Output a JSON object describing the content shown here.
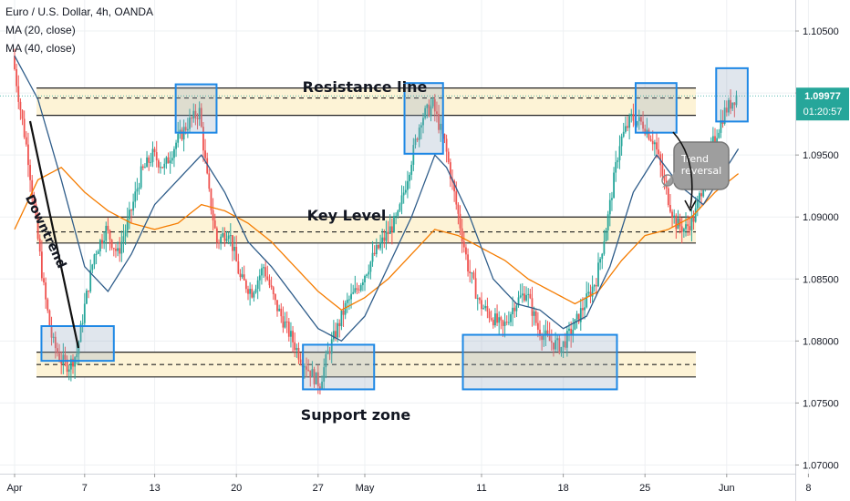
{
  "legend": {
    "symbol": "Euro / U.S. Dollar, 4h, OANDA",
    "ma20": "MA (20, close)",
    "ma40": "MA (40, close)"
  },
  "price_axis": {
    "ticks": [
      "1.10500",
      "1.10000",
      "1.09500",
      "1.09000",
      "1.08500",
      "1.08000",
      "1.07500",
      "1.07000"
    ],
    "last_price": "1.09977",
    "countdown": "01:20:57"
  },
  "annotations": {
    "resistance": "Resistance line",
    "key_level": "Key Level",
    "support": "Support zone",
    "downtrend": "Downtrend",
    "trend_reversal_line1": "Trend",
    "trend_reversal_line2": "reversal"
  },
  "colors": {
    "up": "#26a69a",
    "down": "#ef5350",
    "ma20": "#2f5d8a",
    "ma40": "#f57c00",
    "zone_fill": "#fdf3d6",
    "box": "#1e88e5",
    "price_badge": "#26a69a"
  },
  "chart_data": {
    "type": "candlestick",
    "title": "Euro / U.S. Dollar, 4h, OANDA",
    "x_ticks": [
      {
        "label": "Apr",
        "t": 0
      },
      {
        "label": "7",
        "t": 6
      },
      {
        "label": "13",
        "t": 12
      },
      {
        "label": "20",
        "t": 19
      },
      {
        "label": "27",
        "t": 26
      },
      {
        "label": "May",
        "t": 30
      },
      {
        "label": "11",
        "t": 40
      },
      {
        "label": "18",
        "t": 47
      },
      {
        "label": "25",
        "t": 54
      },
      {
        "label": "Jun",
        "t": 61
      },
      {
        "label": "8",
        "t": 68
      }
    ],
    "ylim": [
      1.0693,
      1.1075
    ],
    "zones": [
      {
        "name": "Resistance line",
        "top": 1.1004,
        "mid": 1.0996,
        "bottom": 1.0982
      },
      {
        "name": "Key Level",
        "top": 1.09,
        "mid": 1.0888,
        "bottom": 1.0879
      },
      {
        "name": "Support zone",
        "top": 1.0791,
        "mid": 1.0781,
        "bottom": 1.0771
      }
    ],
    "highlight_boxes": [
      {
        "t0": 2.3,
        "t1": 8.5,
        "p_top": 1.0812,
        "p_bottom": 1.0784
      },
      {
        "t0": 13.8,
        "t1": 17.3,
        "p_top": 1.1007,
        "p_bottom": 1.0968
      },
      {
        "t0": 24.7,
        "t1": 30.8,
        "p_top": 1.0797,
        "p_bottom": 1.0761
      },
      {
        "t0": 33.4,
        "t1": 36.7,
        "p_top": 1.1008,
        "p_bottom": 1.0951
      },
      {
        "t0": 38.4,
        "t1": 51.6,
        "p_top": 1.0805,
        "p_bottom": 1.0761
      },
      {
        "t0": 53.2,
        "t1": 56.7,
        "p_top": 1.1008,
        "p_bottom": 1.0968
      },
      {
        "t0": 60.1,
        "t1": 62.8,
        "p_top": 1.102,
        "p_bottom": 1.0977
      }
    ],
    "price_path": [
      [
        0,
        1.103
      ],
      [
        0.7,
        1.0985
      ],
      [
        1.3,
        1.095
      ],
      [
        2.0,
        1.0895
      ],
      [
        2.7,
        1.084
      ],
      [
        3.4,
        1.08
      ],
      [
        4.1,
        1.0785
      ],
      [
        4.8,
        1.078
      ],
      [
        5.5,
        1.079
      ],
      [
        6.2,
        1.083
      ],
      [
        7.0,
        1.087
      ],
      [
        8.0,
        1.089
      ],
      [
        9.0,
        1.087
      ],
      [
        10.0,
        1.09
      ],
      [
        11.0,
        1.0935
      ],
      [
        12.0,
        1.095
      ],
      [
        13.0,
        1.094
      ],
      [
        14.0,
        1.096
      ],
      [
        15.0,
        1.0975
      ],
      [
        16.0,
        1.0985
      ],
      [
        16.8,
        1.092
      ],
      [
        17.5,
        1.088
      ],
      [
        18.5,
        1.089
      ],
      [
        19.5,
        1.085
      ],
      [
        20.5,
        1.084
      ],
      [
        21.5,
        1.086
      ],
      [
        22.5,
        1.083
      ],
      [
        23.5,
        1.081
      ],
      [
        24.5,
        1.079
      ],
      [
        25.5,
        1.0775
      ],
      [
        26.3,
        1.0765
      ],
      [
        27.0,
        1.079
      ],
      [
        27.8,
        1.081
      ],
      [
        28.6,
        1.083
      ],
      [
        29.4,
        1.084
      ],
      [
        30.2,
        1.0855
      ],
      [
        31.0,
        1.087
      ],
      [
        32.0,
        1.0885
      ],
      [
        33.0,
        1.09
      ],
      [
        34.0,
        1.094
      ],
      [
        35.0,
        1.098
      ],
      [
        36.0,
        1.099
      ],
      [
        37.0,
        1.096
      ],
      [
        38.0,
        1.091
      ],
      [
        39.0,
        1.086
      ],
      [
        40.0,
        1.083
      ],
      [
        41.0,
        1.082
      ],
      [
        42.0,
        1.081
      ],
      [
        43.0,
        1.083
      ],
      [
        44.0,
        1.084
      ],
      [
        45.0,
        1.081
      ],
      [
        46.0,
        1.08
      ],
      [
        47.0,
        1.0795
      ],
      [
        48.0,
        1.081
      ],
      [
        49.0,
        1.083
      ],
      [
        50.0,
        1.085
      ],
      [
        51.0,
        1.09
      ],
      [
        52.0,
        1.096
      ],
      [
        53.0,
        1.098
      ],
      [
        54.0,
        1.0975
      ],
      [
        55.0,
        1.096
      ],
      [
        56.0,
        1.092
      ],
      [
        56.8,
        1.0895
      ],
      [
        57.6,
        1.089
      ],
      [
        58.4,
        1.09
      ],
      [
        59.2,
        1.093
      ],
      [
        60.0,
        1.096
      ],
      [
        61.0,
        1.0985
      ],
      [
        62.0,
        1.0998
      ]
    ],
    "ma20_path": [
      [
        0,
        1.103
      ],
      [
        2,
        1.0995
      ],
      [
        4,
        1.093
      ],
      [
        6,
        1.086
      ],
      [
        8,
        1.084
      ],
      [
        10,
        1.087
      ],
      [
        12,
        1.091
      ],
      [
        14,
        1.093
      ],
      [
        16,
        1.095
      ],
      [
        18,
        1.092
      ],
      [
        20,
        1.088
      ],
      [
        22,
        1.086
      ],
      [
        24,
        1.0835
      ],
      [
        26,
        1.081
      ],
      [
        28,
        1.08
      ],
      [
        30,
        1.082
      ],
      [
        32,
        1.086
      ],
      [
        34,
        1.09
      ],
      [
        36,
        1.095
      ],
      [
        37,
        1.094
      ],
      [
        39,
        1.09
      ],
      [
        41,
        1.085
      ],
      [
        43,
        1.083
      ],
      [
        45,
        1.0825
      ],
      [
        47,
        1.081
      ],
      [
        49,
        1.082
      ],
      [
        51,
        1.086
      ],
      [
        53,
        1.092
      ],
      [
        55,
        1.095
      ],
      [
        57,
        1.0925
      ],
      [
        59,
        1.091
      ],
      [
        61,
        1.094
      ],
      [
        62,
        1.0955
      ]
    ],
    "ma40_path": [
      [
        0,
        1.089
      ],
      [
        2,
        1.093
      ],
      [
        4,
        1.094
      ],
      [
        6,
        1.092
      ],
      [
        8,
        1.0905
      ],
      [
        10,
        1.0895
      ],
      [
        12,
        1.089
      ],
      [
        14,
        1.0895
      ],
      [
        16,
        1.091
      ],
      [
        18,
        1.0905
      ],
      [
        20,
        1.0895
      ],
      [
        22,
        1.088
      ],
      [
        24,
        1.086
      ],
      [
        26,
        1.084
      ],
      [
        28,
        1.0825
      ],
      [
        30,
        1.0835
      ],
      [
        32,
        1.085
      ],
      [
        34,
        1.087
      ],
      [
        36,
        1.089
      ],
      [
        38,
        1.0885
      ],
      [
        40,
        1.0875
      ],
      [
        42,
        1.0865
      ],
      [
        44,
        1.085
      ],
      [
        46,
        1.084
      ],
      [
        48,
        1.083
      ],
      [
        50,
        1.084
      ],
      [
        52,
        1.0865
      ],
      [
        54,
        1.0885
      ],
      [
        56,
        1.089
      ],
      [
        58,
        1.09
      ],
      [
        60,
        1.092
      ],
      [
        62,
        1.0935
      ]
    ]
  }
}
